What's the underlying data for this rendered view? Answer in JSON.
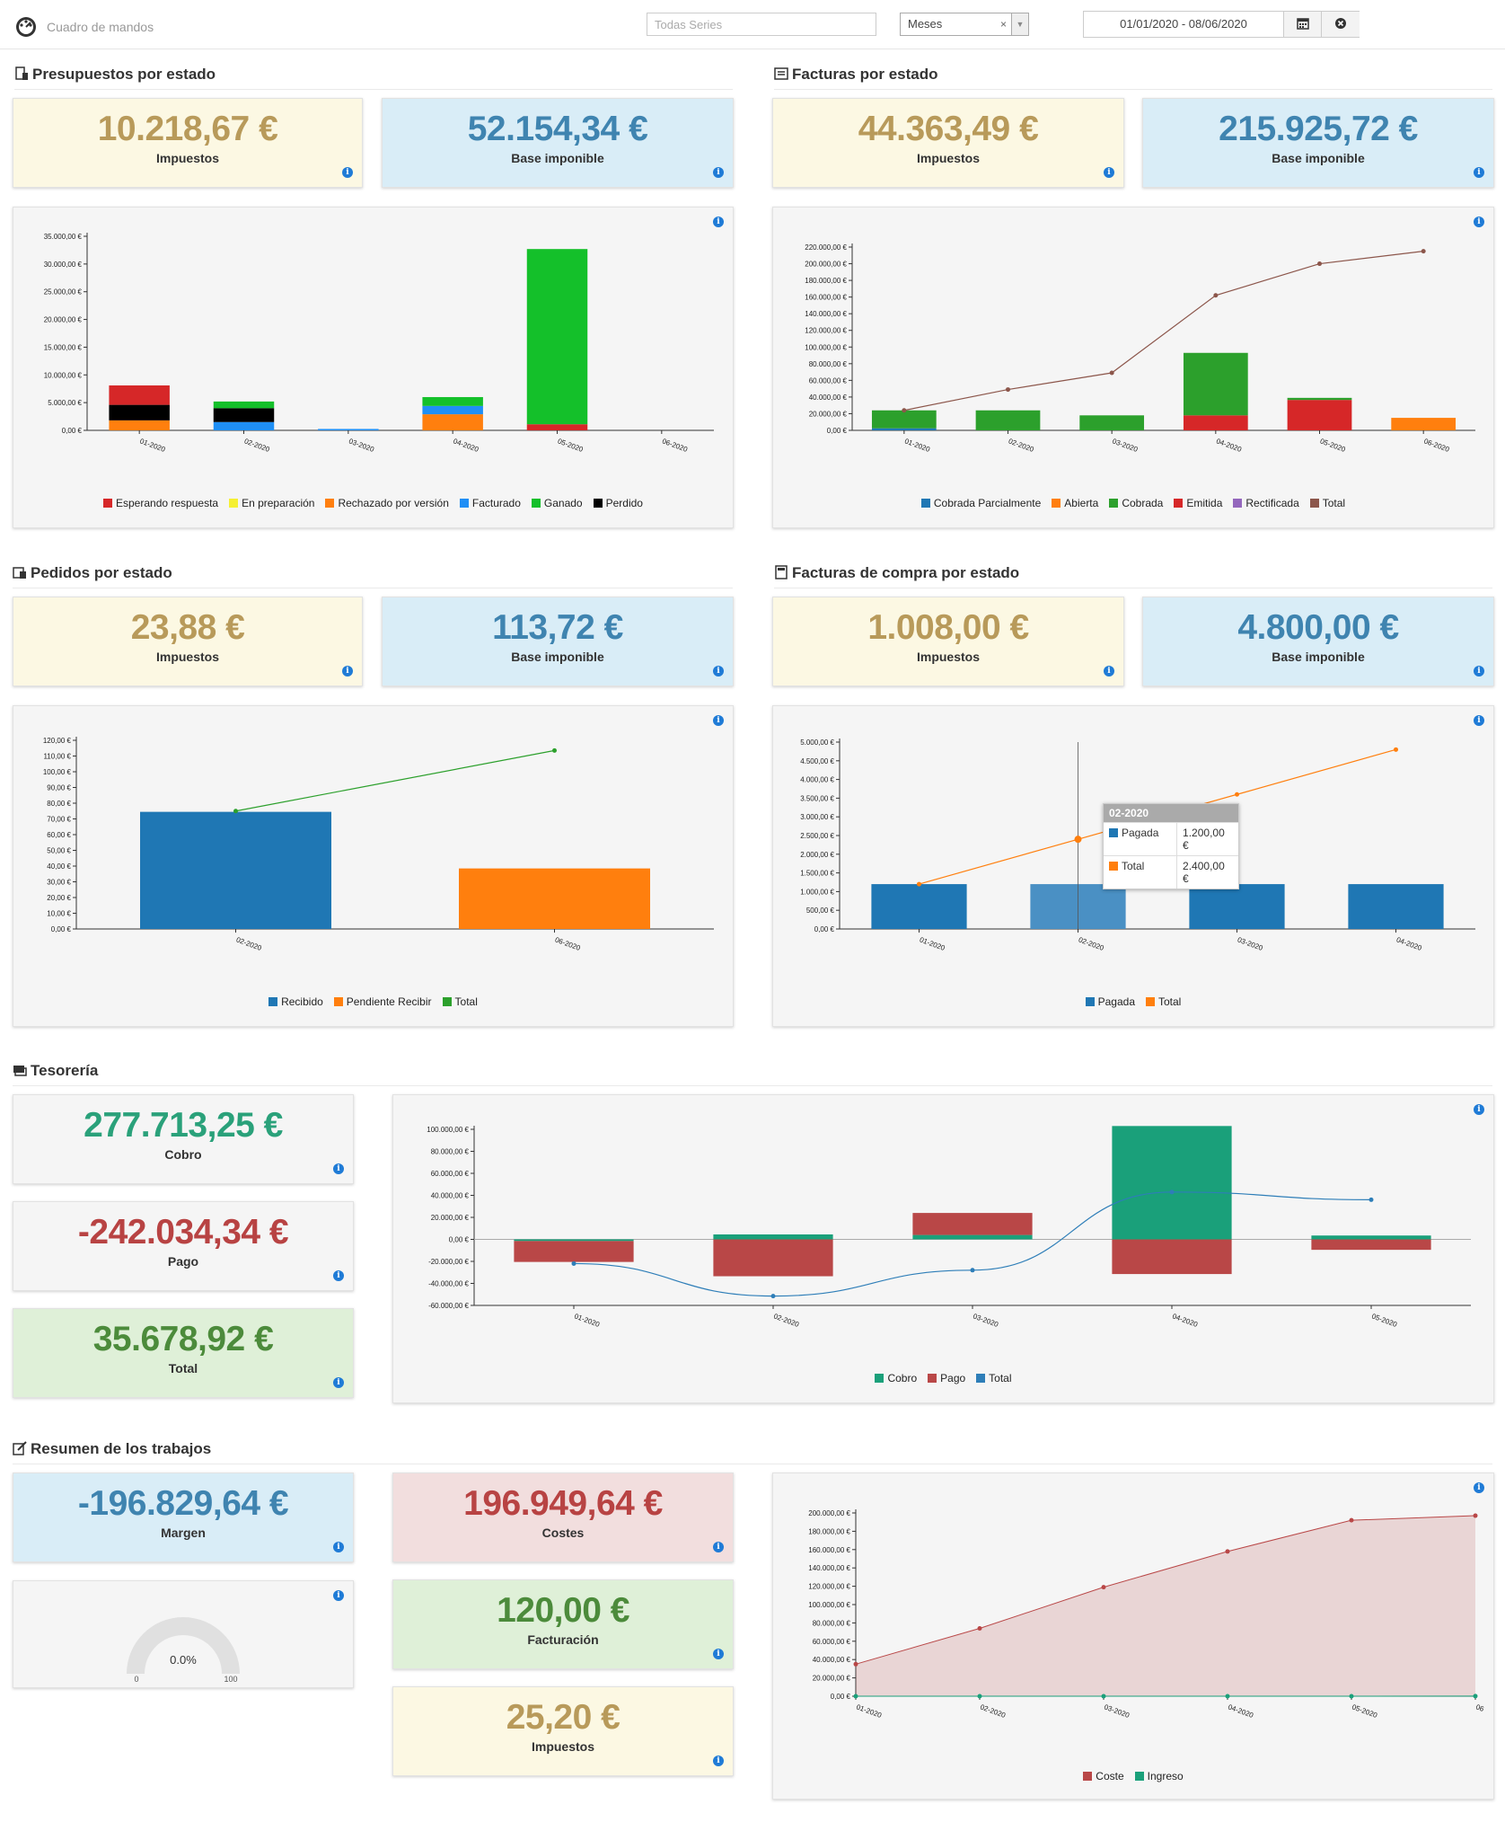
{
  "header": {
    "title": "Cuadro de mandos",
    "series_placeholder": "Todas Series",
    "period": "Meses",
    "period_clear": "×",
    "date_range": "01/01/2020 - 08/06/2020",
    "icons": [
      "dashboard-icon",
      "calendar-icon",
      "clear-icon"
    ]
  },
  "sections": {
    "presupuestos": {
      "title": "Presupuestos por estado",
      "tax": "10.218,67 €",
      "tax_label": "Impuestos",
      "base": "52.154,34 €",
      "base_label": "Base imponible"
    },
    "facturas": {
      "title": "Facturas por estado",
      "tax": "44.363,49 €",
      "tax_label": "Impuestos",
      "base": "215.925,72 €",
      "base_label": "Base imponible"
    },
    "pedidos": {
      "title": "Pedidos por estado",
      "tax": "23,88 €",
      "tax_label": "Impuestos",
      "base": "113,72 €",
      "base_label": "Base imponible"
    },
    "compras": {
      "title": "Facturas de compra por estado",
      "tax": "1.008,00 €",
      "tax_label": "Impuestos",
      "base": "4.800,00 €",
      "base_label": "Base imponible"
    },
    "tesoreria": {
      "title": "Tesorería",
      "cobro": "277.713,25 €",
      "cobro_label": "Cobro",
      "pago": "-242.034,34 €",
      "pago_label": "Pago",
      "total": "35.678,92 €",
      "total_label": "Total"
    },
    "trabajos": {
      "title": "Resumen de los trabajos",
      "margen": "-196.829,64 €",
      "margen_label": "Margen",
      "costes": "196.949,64 €",
      "costes_label": "Costes",
      "facturacion": "120,00 €",
      "facturacion_label": "Facturación",
      "impuestos": "25,20 €",
      "impuestos_label": "Impuestos",
      "gauge_value": "0.0%",
      "gauge_min": "0",
      "gauge_max": "100",
      "gauge_level": 0
    }
  },
  "tooltip": {
    "title": "02-2020",
    "rows": [
      {
        "name": "Pagada",
        "value": "1.200,00 €",
        "color": "#1f77b4"
      },
      {
        "name": "Total",
        "value": "2.400,00 €",
        "color": "#ff7f0e"
      }
    ]
  },
  "chart_data": [
    {
      "id": "presupuestos",
      "type": "bar",
      "stacked": true,
      "categories": [
        "01-2020",
        "02-2020",
        "03-2020",
        "04-2020",
        "05-2020",
        "06-2020"
      ],
      "ylim": [
        0,
        35000
      ],
      "yticks": [
        "0,00 €",
        "5.000,00 €",
        "10.000,00 €",
        "15.000,00 €",
        "20.000,00 €",
        "25.000,00 €",
        "30.000,00 €",
        "35.000,00 €"
      ],
      "series": [
        {
          "name": "Esperando respuesta",
          "color": "#d62728",
          "values": [
            3500,
            0,
            0,
            0,
            0,
            0
          ]
        },
        {
          "name": "En preparación",
          "color": "#f5f032",
          "values": [
            0,
            0,
            0,
            0,
            0,
            0
          ]
        },
        {
          "name": "Rechazado por versión",
          "color": "#ff7f0e",
          "values": [
            1800,
            0,
            0,
            2900,
            0,
            0
          ]
        },
        {
          "name": "Facturado",
          "color": "#1f8ff5",
          "values": [
            0,
            1500,
            250,
            1500,
            0,
            0
          ]
        },
        {
          "name": "Ganado",
          "color": "#14c02a",
          "values": [
            0,
            1200,
            0,
            1600,
            31600,
            0
          ]
        },
        {
          "name": "Perdido",
          "color": "#000000",
          "values": [
            2800,
            2500,
            0,
            0,
            0,
            0
          ]
        }
      ],
      "stack_order": [
        2,
        3,
        5,
        0,
        1,
        4
      ],
      "extra_red_base": [
        0,
        0,
        0,
        0,
        1100,
        0
      ]
    },
    {
      "id": "facturas",
      "type": "bar+line",
      "stacked": true,
      "categories": [
        "01-2020",
        "02-2020",
        "03-2020",
        "04-2020",
        "05-2020",
        "06-2020"
      ],
      "ylim": [
        0,
        220000
      ],
      "yticks": [
        "0,00 €",
        "20.000,00 €",
        "40.000,00 €",
        "60.000,00 €",
        "80.000,00 €",
        "100.000,00 €",
        "120.000,00 €",
        "140.000,00 €",
        "160.000,00 €",
        "180.000,00 €",
        "200.000,00 €",
        "220.000,00 €"
      ],
      "series": [
        {
          "name": "Cobrada Parcialmente",
          "color": "#1f77b4",
          "values": [
            2500,
            0,
            0,
            0,
            0,
            0
          ]
        },
        {
          "name": "Abierta",
          "color": "#ff7f0e",
          "values": [
            0,
            0,
            0,
            0,
            0,
            15000
          ]
        },
        {
          "name": "Cobrada",
          "color": "#2ca02c",
          "values": [
            21500,
            24000,
            18000,
            75000,
            2500,
            0
          ]
        },
        {
          "name": "Emitida",
          "color": "#d62728",
          "values": [
            0,
            0,
            0,
            18000,
            36500,
            0
          ]
        },
        {
          "name": "Rectificada",
          "color": "#9467bd",
          "values": [
            0,
            0,
            0,
            0,
            0,
            0
          ]
        }
      ],
      "stack_order": [
        0,
        3,
        2,
        1,
        4
      ],
      "line": {
        "name": "Total",
        "color": "#8c564b",
        "values": [
          24000,
          49000,
          69000,
          162000,
          200000,
          215000
        ]
      }
    },
    {
      "id": "pedidos",
      "type": "bar+line",
      "categories": [
        "02-2020",
        "06-2020"
      ],
      "ylim": [
        0,
        120
      ],
      "yticks": [
        "0,00 €",
        "10,00 €",
        "20,00 €",
        "30,00 €",
        "40,00 €",
        "50,00 €",
        "60,00 €",
        "70,00 €",
        "80,00 €",
        "90,00 €",
        "100,00 €",
        "110,00 €",
        "120,00 €"
      ],
      "series": [
        {
          "name": "Recibido",
          "color": "#1f77b4",
          "values": [
            74.5,
            0
          ]
        },
        {
          "name": "Pendiente Recibir",
          "color": "#ff7f0e",
          "values": [
            0,
            38.5
          ]
        }
      ],
      "line": {
        "name": "Total",
        "color": "#2ca02c",
        "values": [
          75,
          113.5
        ]
      }
    },
    {
      "id": "compras",
      "type": "bar+line",
      "categories": [
        "01-2020",
        "02-2020",
        "03-2020",
        "04-2020"
      ],
      "ylim": [
        0,
        5000
      ],
      "yticks": [
        "0,00 €",
        "500,00 €",
        "1.000,00 €",
        "1.500,00 €",
        "2.000,00 €",
        "2.500,00 €",
        "3.000,00 €",
        "3.500,00 €",
        "4.000,00 €",
        "4.500,00 €",
        "5.000,00 €"
      ],
      "series": [
        {
          "name": "Pagada",
          "color": "#1f77b4",
          "values": [
            1200,
            1200,
            1200,
            1200
          ]
        }
      ],
      "line": {
        "name": "Total",
        "color": "#ff7f0e",
        "values": [
          1200,
          2400,
          3600,
          4800
        ]
      }
    },
    {
      "id": "tesoreria",
      "type": "bar+line",
      "categories": [
        "01-2020",
        "02-2020",
        "03-2020",
        "04-2020",
        "05-2020"
      ],
      "ylim": [
        -60000,
        100000
      ],
      "yticks": [
        "-60.000,00 €",
        "-40.000,00 €",
        "-20.000,00 €",
        "0,00 €",
        "20.000,00 €",
        "40.000,00 €",
        "60.000,00 €",
        "80.000,00 €",
        "100.000,00 €"
      ],
      "series": [
        {
          "name": "Cobro",
          "color": "#1aa07a",
          "values": [
            -1500,
            4500,
            4000,
            103000,
            3500
          ]
        },
        {
          "name": "Pago",
          "color": "#b94747",
          "values": [
            -19000,
            -33500,
            20000,
            -31500,
            -9500
          ]
        }
      ],
      "line": {
        "name": "Total",
        "color": "#2e7eb8",
        "values": [
          -22000,
          -51500,
          -28000,
          43000,
          36000
        ]
      }
    },
    {
      "id": "trabajos",
      "type": "area",
      "categories": [
        "01-2020",
        "02-2020",
        "03-2020",
        "04-2020",
        "05-2020",
        "06"
      ],
      "ylim": [
        0,
        200000
      ],
      "yticks": [
        "0,00 €",
        "20.000,00 €",
        "40.000,00 €",
        "60.000,00 €",
        "80.000,00 €",
        "100.000,00 €",
        "120.000,00 €",
        "140.000,00 €",
        "160.000,00 €",
        "180.000,00 €",
        "200.000,00 €"
      ],
      "series": [
        {
          "name": "Coste",
          "color": "#b94747",
          "values": [
            35000,
            74000,
            119000,
            158000,
            192000,
            197000
          ]
        },
        {
          "name": "Ingreso",
          "color": "#1aa07a",
          "values": [
            0,
            0,
            0,
            0,
            0,
            120
          ]
        }
      ]
    }
  ]
}
